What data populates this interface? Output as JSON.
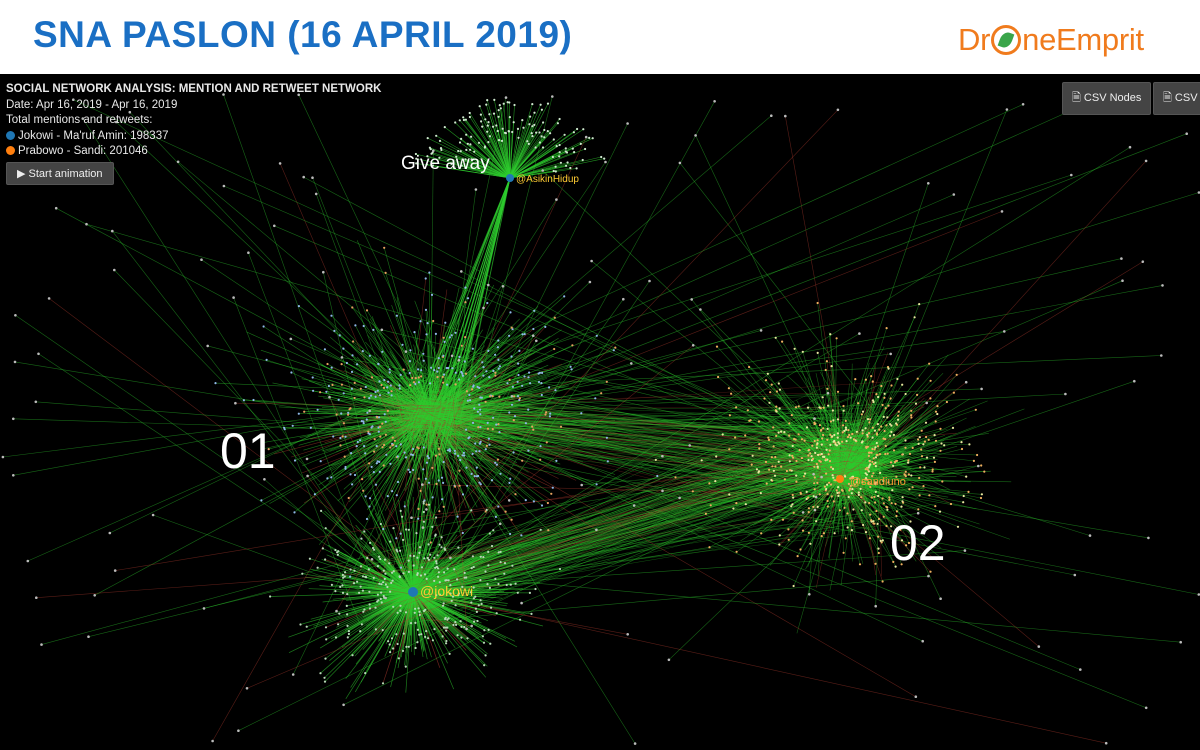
{
  "header": {
    "title": "SNA PASLON (16 APRIL 2019)",
    "logo_prefix": "Dr",
    "logo_suffix": "neEmprit"
  },
  "info": {
    "heading": "SOCIAL NETWORK ANALYSIS: MENTION AND RETWEET NETWORK",
    "date": "Date: Apr 16, 2019 - Apr 16, 2019",
    "totals_label": "Total mentions and retweets:",
    "legend": [
      {
        "name": "Jokowi - Ma'ruf Amin",
        "value": "198337",
        "color": "#1f77b4"
      },
      {
        "name": "Prabowo - Sandi",
        "value": "201046",
        "color": "#ff7f0e"
      }
    ]
  },
  "buttons": {
    "animation": "▶ Start animation",
    "csv_nodes": "CSV Nodes",
    "csv": "CSV"
  },
  "annotations": {
    "cluster1": "01",
    "cluster2": "02",
    "giveaway": "Give away"
  },
  "hubs": {
    "jokowi": "@jokowi",
    "asikin": "@AsikinHidup",
    "sandi": "@sandiuno"
  },
  "colors": {
    "edge_green": "#2ecc2e",
    "edge_red": "#b03a2e",
    "jokowi_node": "#1f77b4",
    "prabowo_node": "#ff7f0e"
  }
}
